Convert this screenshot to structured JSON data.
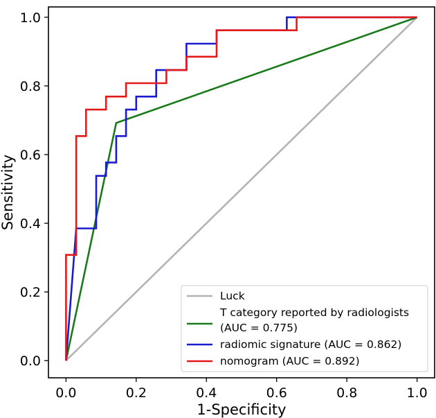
{
  "chart_data": {
    "type": "line",
    "title": "",
    "xlabel": "1-Specificity",
    "ylabel": "Sensitivity",
    "xlim": [
      -0.05,
      1.05
    ],
    "ylim": [
      -0.05,
      1.03
    ],
    "xticks": [
      0.0,
      0.2,
      0.4,
      0.6,
      0.8,
      1.0
    ],
    "xtick_labels": [
      "0.0",
      "0.2",
      "0.4",
      "0.6",
      "0.8",
      "1.0"
    ],
    "yticks": [
      0.0,
      0.2,
      0.4,
      0.6,
      0.8,
      1.0
    ],
    "ytick_labels": [
      "0.0",
      "0.2",
      "0.4",
      "0.6",
      "0.8",
      "1.0"
    ],
    "legend_position": "bottom-right",
    "series": [
      {
        "name": "Luck",
        "legend_lines": [
          "Luck"
        ],
        "color": "#b3b3b3",
        "x": [
          0,
          1
        ],
        "y": [
          0,
          1
        ]
      },
      {
        "name": "T category reported by radiologists (AUC = 0.775)",
        "legend_lines": [
          "T category reported by radiologists",
          "(AUC = 0.775)"
        ],
        "color": "#1a7a1a",
        "x": [
          0,
          0.143,
          1
        ],
        "y": [
          0,
          0.692,
          1
        ]
      },
      {
        "name": "radiomic signature (AUC = 0.862)",
        "legend_lines": [
          "radiomic signature (AUC = 0.862)"
        ],
        "color": "#1a1ad0",
        "x": [
          0,
          0.029,
          0.029,
          0.086,
          0.086,
          0.114,
          0.114,
          0.143,
          0.143,
          0.171,
          0.171,
          0.2,
          0.2,
          0.257,
          0.257,
          0.343,
          0.343,
          0.429,
          0.429,
          0.629,
          0.629,
          1.0
        ],
        "y": [
          0,
          0.385,
          0.385,
          0.385,
          0.538,
          0.538,
          0.577,
          0.577,
          0.654,
          0.654,
          0.731,
          0.731,
          0.769,
          0.769,
          0.846,
          0.846,
          0.923,
          0.923,
          0.962,
          0.962,
          1.0,
          1.0
        ]
      },
      {
        "name": "nomogram (AUC = 0.892)",
        "legend_lines": [
          "nomogram (AUC = 0.892)"
        ],
        "color": "#e41a1a",
        "x": [
          0,
          0.0,
          0.0,
          0.029,
          0.029,
          0.057,
          0.057,
          0.114,
          0.114,
          0.171,
          0.171,
          0.286,
          0.286,
          0.343,
          0.343,
          0.429,
          0.429,
          0.657,
          0.657,
          1.0
        ],
        "y": [
          0,
          0.308,
          0.308,
          0.308,
          0.654,
          0.654,
          0.731,
          0.731,
          0.769,
          0.769,
          0.808,
          0.808,
          0.846,
          0.846,
          0.885,
          0.885,
          0.962,
          0.962,
          1.0,
          1.0
        ]
      }
    ]
  }
}
